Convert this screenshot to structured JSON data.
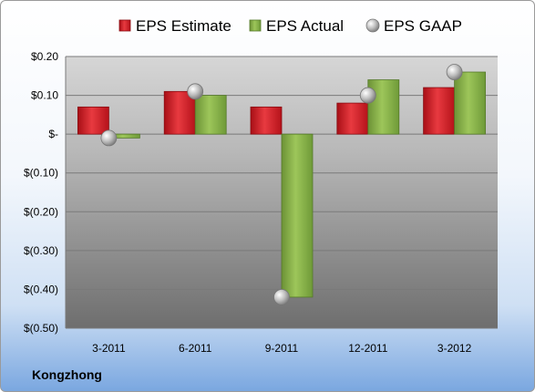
{
  "company": "Kongzhong",
  "colors": {
    "estimate": "#d41c24",
    "actual": "#8ab34a",
    "gaap": "#a8a8a8"
  },
  "chart_data": {
    "type": "bar",
    "categories": [
      "3-2011",
      "6-2011",
      "9-2011",
      "12-2011",
      "3-2012"
    ],
    "series": [
      {
        "name": "EPS Estimate",
        "kind": "bar",
        "values": [
          0.07,
          0.11,
          0.07,
          0.08,
          0.12
        ]
      },
      {
        "name": "EPS Actual",
        "kind": "bar",
        "values": [
          -0.01,
          0.1,
          -0.42,
          0.14,
          0.16
        ]
      },
      {
        "name": "EPS GAAP",
        "kind": "marker",
        "values": [
          -0.01,
          0.11,
          -0.42,
          0.1,
          0.16
        ]
      }
    ],
    "yticks": [
      0.2,
      0.1,
      0,
      -0.1,
      -0.2,
      -0.3,
      -0.4,
      -0.5
    ],
    "ytick_labels": [
      "$0.20",
      "$0.10",
      "$-",
      "$(0.10)",
      "$(0.20)",
      "$(0.30)",
      "$(0.40)",
      "$(0.50)"
    ],
    "ylim": [
      -0.5,
      0.2
    ],
    "grid": true,
    "legend_position": "top"
  }
}
